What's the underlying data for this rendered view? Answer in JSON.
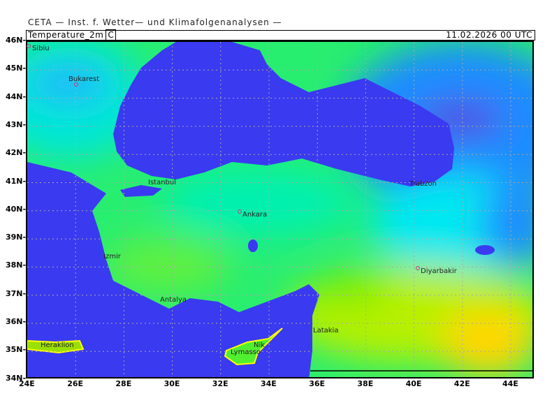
{
  "header": {
    "institute": "CETA — Inst. f. Wetter— und Klimafolgenanalysen —"
  },
  "titlebar": {
    "variable": "Temperature_2m",
    "unit": "C",
    "datetime": "11.02.2026 00 UTC"
  },
  "axes": {
    "lat_labels": [
      "46N",
      "45N",
      "44N",
      "43N",
      "42N",
      "41N",
      "40N",
      "39N",
      "38N",
      "37N",
      "36N",
      "35N",
      "34N"
    ],
    "lon_labels": [
      "24E",
      "26E",
      "28E",
      "30E",
      "32E",
      "34E",
      "36E",
      "38E",
      "40E",
      "42E",
      "44E"
    ]
  },
  "cities": [
    "Sibiu",
    "Bukarest",
    "Istanbul",
    "Ankara",
    "Izmir",
    "Antalya",
    "Trabzon",
    "Diyarbakir",
    "Latakia",
    "Heraklion",
    "Nik",
    "Lymasso"
  ],
  "colors": {
    "sea": "#3a3af0",
    "land_mild": "#22f07a",
    "land_cold": "#00e8e0",
    "cold": "#1e90ff",
    "very_cold": "#5a20d8",
    "warm": "#f0f000",
    "hot": "#ffd700"
  }
}
